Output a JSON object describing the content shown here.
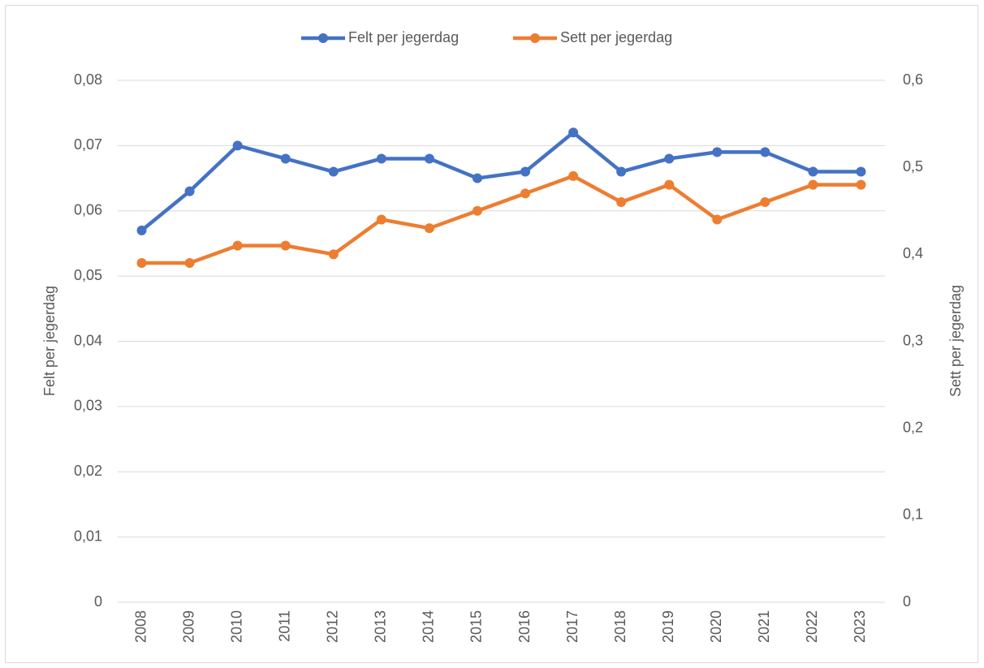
{
  "chart_data": {
    "type": "line",
    "y_label": "Felt per jegerdag",
    "y2_label": "Sett per jegerdag",
    "categories": [
      "2008",
      "2009",
      "2010",
      "2011",
      "2012",
      "2013",
      "2014",
      "2015",
      "2016",
      "2017",
      "2018",
      "2019",
      "2020",
      "2021",
      "2022",
      "2023"
    ],
    "series": [
      {
        "name": "Felt per jegerdag",
        "color": "#4472c4",
        "values": [
          0.057,
          0.063,
          0.07,
          0.068,
          0.066,
          0.068,
          0.068,
          0.065,
          0.066,
          0.072,
          0.066,
          0.068,
          0.069,
          0.069,
          0.066,
          0.066
        ]
      },
      {
        "name": "Sett per jegerdag",
        "color": "#ed7d31",
        "axis": "y2",
        "values": [
          0.39,
          0.39,
          0.41,
          0.41,
          0.4,
          0.44,
          0.43,
          0.45,
          0.47,
          0.49,
          0.46,
          0.48,
          0.44,
          0.46,
          0.48,
          0.48
        ]
      }
    ],
    "ylim": [
      0,
      0.08
    ],
    "yticks": [
      0,
      {
        "value": 0.01,
        "label": "0,01"
      },
      {
        "value": 0.02,
        "label": "0,02"
      },
      {
        "value": 0.03,
        "label": "0,03"
      },
      {
        "value": 0.04,
        "label": "0,04"
      },
      {
        "value": 0.05,
        "label": "0,05"
      },
      {
        "value": 0.06,
        "label": "0,06"
      },
      {
        "value": 0.07,
        "label": "0,07"
      },
      {
        "value": 0.08,
        "label": "0,08"
      }
    ],
    "y2lim": [
      0,
      0.6
    ],
    "y2ticks": [
      0,
      {
        "value": 0.1,
        "label": "0,1"
      },
      {
        "value": 0.2,
        "label": "0,2"
      },
      {
        "value": 0.3,
        "label": "0,3"
      },
      {
        "value": 0.4,
        "label": "0,4"
      },
      {
        "value": 0.5,
        "label": "0,5"
      },
      {
        "value": 0.6,
        "label": "0,6"
      }
    ],
    "grid": true,
    "legend": "top"
  }
}
